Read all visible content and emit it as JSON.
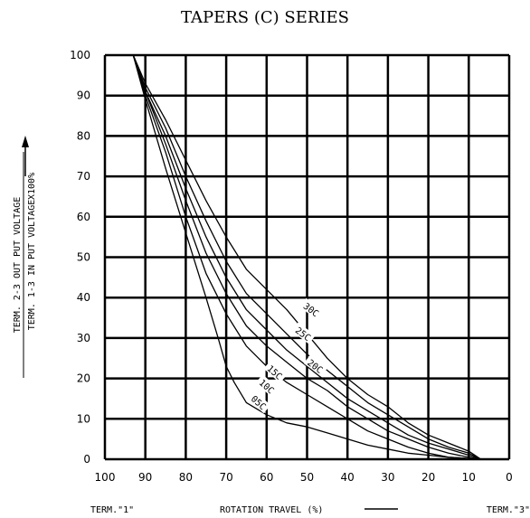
{
  "chart_data": {
    "type": "line",
    "title": "TAPERS (C) SERIES",
    "xlabel": "ROTATION TRAVEL (%)",
    "ylabel_numerator": "TERM. 2-3 OUT PUT VOLTAGE",
    "ylabel_denominator": "TERM. 1-3 IN PUT VOLTAGE",
    "ylabel_multiplier": "X100%",
    "x_start_label": "TERM.\"1\"",
    "x_end_label": "TERM.\"3\"",
    "xlim": [
      100,
      0
    ],
    "ylim": [
      0,
      100
    ],
    "x_ticks": [
      100,
      90,
      80,
      70,
      60,
      50,
      40,
      30,
      20,
      10,
      0
    ],
    "y_ticks": [
      0,
      10,
      20,
      30,
      40,
      50,
      60,
      70,
      80,
      90,
      100
    ],
    "grid": true,
    "series": [
      {
        "name": "30C",
        "label_at": [
          49,
          37
        ],
        "label_angle": 37,
        "x": [
          93,
          90,
          85,
          80,
          75,
          70,
          65,
          60,
          55,
          50,
          45,
          40,
          35,
          30,
          25,
          20,
          15,
          10,
          7
        ],
        "y": [
          100,
          93,
          84,
          74,
          64,
          55,
          47,
          42,
          37,
          31,
          25,
          20,
          16,
          13,
          9,
          6,
          4,
          2,
          0
        ]
      },
      {
        "name": "25C",
        "label_at": [
          51,
          31
        ],
        "label_angle": 37,
        "x": [
          93,
          90,
          85,
          80,
          75,
          70,
          65,
          60,
          55,
          50,
          45,
          40,
          35,
          30,
          25,
          20,
          15,
          10,
          7
        ],
        "y": [
          100,
          92,
          82,
          70,
          59,
          49,
          41,
          36,
          31,
          26,
          22,
          18,
          14,
          11,
          8,
          5,
          3,
          1.5,
          0
        ]
      },
      {
        "name": "20C",
        "label_at": [
          48,
          23
        ],
        "label_angle": 37,
        "x": [
          93,
          90,
          85,
          80,
          75,
          70,
          65,
          60,
          55,
          50,
          45,
          40,
          35,
          30,
          25,
          20,
          15,
          10,
          7
        ],
        "y": [
          100,
          91,
          80,
          67,
          55,
          45,
          37,
          32,
          27,
          23,
          19,
          15,
          12,
          9,
          6,
          4,
          2.5,
          1,
          0
        ]
      },
      {
        "name": "15C",
        "label_at": [
          58,
          21.5
        ],
        "label_angle": 42,
        "x": [
          93,
          90,
          85,
          80,
          75,
          70,
          65,
          60,
          55,
          50,
          45,
          40,
          35,
          30,
          25,
          20,
          15,
          10,
          7
        ],
        "y": [
          100,
          91,
          78,
          64,
          51,
          41,
          33,
          28,
          24,
          20,
          17,
          13,
          10,
          7,
          5,
          3,
          1.5,
          0.5,
          0
        ]
      },
      {
        "name": "10C",
        "label_at": [
          60,
          18
        ],
        "label_angle": 42,
        "x": [
          93,
          90,
          85,
          80,
          75,
          70,
          65,
          60,
          55,
          50,
          45,
          40,
          35,
          30,
          25,
          20,
          15,
          10,
          7
        ],
        "y": [
          100,
          90,
          76,
          60,
          46,
          36,
          28,
          23,
          19,
          16,
          13,
          10,
          7,
          5,
          3,
          1.5,
          0.5,
          0.2,
          0
        ]
      },
      {
        "name": "05C",
        "label_at": [
          62,
          14
        ],
        "label_angle": 42,
        "x": [
          93,
          90,
          85,
          80,
          75,
          72,
          70,
          68,
          65,
          60,
          55,
          50,
          45,
          40,
          35,
          30,
          25,
          20,
          15,
          10,
          7
        ],
        "y": [
          100,
          89,
          72,
          56,
          40,
          30,
          23,
          19,
          14,
          11,
          9,
          8,
          6.5,
          5,
          3.5,
          2.5,
          1.5,
          1,
          0.5,
          0.2,
          0
        ]
      }
    ]
  }
}
